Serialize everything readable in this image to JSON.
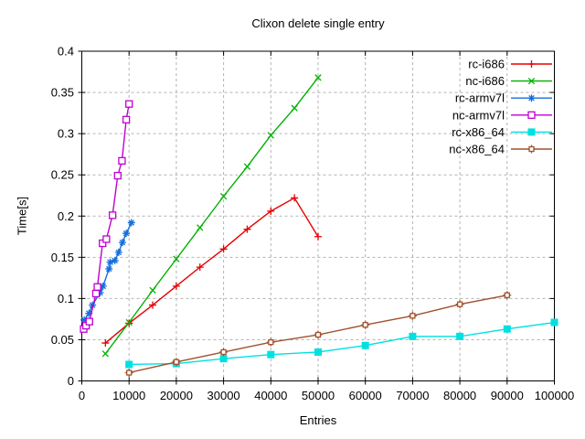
{
  "chart_data": {
    "type": "line",
    "title": "Clixon delete single entry",
    "xlabel": "Entries",
    "ylabel": "Time[s]",
    "xlim": [
      0,
      100000
    ],
    "ylim": [
      0,
      0.4
    ],
    "x_ticks": [
      0,
      10000,
      20000,
      30000,
      40000,
      50000,
      60000,
      70000,
      80000,
      90000,
      100000
    ],
    "y_ticks": [
      0,
      0.05,
      0.1,
      0.15,
      0.2,
      0.25,
      0.3,
      0.35,
      0.4
    ],
    "grid": true,
    "grid_color": "#b3b3b3",
    "legend_position": "top-right-inside",
    "series": [
      {
        "name": "rc-i686",
        "color": "#e60000",
        "marker": "plus",
        "x": [
          5000,
          10000,
          15000,
          20000,
          25000,
          30000,
          35000,
          40000,
          45000,
          50000
        ],
        "y": [
          0.046,
          0.07,
          0.092,
          0.115,
          0.138,
          0.16,
          0.184,
          0.206,
          0.222,
          0.175
        ]
      },
      {
        "name": "nc-i686",
        "color": "#00b000",
        "marker": "cross",
        "x": [
          5000,
          10000,
          15000,
          20000,
          25000,
          30000,
          35000,
          40000,
          45000,
          50000
        ],
        "y": [
          0.033,
          0.071,
          0.11,
          0.148,
          0.186,
          0.224,
          0.26,
          0.298,
          0.331,
          0.368
        ]
      },
      {
        "name": "rc-armv7l",
        "color": "#146edc",
        "marker": "asterisk",
        "x": [
          500,
          1500,
          2250,
          3850,
          4500,
          5750,
          6000,
          7000,
          7800,
          8600,
          9400,
          10500
        ],
        "y": [
          0.074,
          0.082,
          0.092,
          0.107,
          0.115,
          0.136,
          0.144,
          0.146,
          0.156,
          0.168,
          0.179,
          0.192
        ]
      },
      {
        "name": "nc-armv7l",
        "color": "#c000d0",
        "marker": "square-open",
        "x": [
          400,
          900,
          1600,
          3000,
          3300,
          4400,
          5200,
          6500,
          7600,
          8500,
          9400,
          10000
        ],
        "y": [
          0.063,
          0.067,
          0.072,
          0.106,
          0.114,
          0.167,
          0.172,
          0.201,
          0.249,
          0.267,
          0.317,
          0.336
        ]
      },
      {
        "name": "rc-x86_64",
        "color": "#00e0e0",
        "marker": "square-filled",
        "x": [
          10000,
          20000,
          30000,
          40000,
          50000,
          60000,
          70000,
          80000,
          90000,
          100000
        ],
        "y": [
          0.02,
          0.021,
          0.027,
          0.032,
          0.035,
          0.043,
          0.054,
          0.054,
          0.063,
          0.071
        ]
      },
      {
        "name": "nc-x86_64",
        "color": "#a0522d",
        "marker": "square-plus",
        "x": [
          10000,
          20000,
          30000,
          40000,
          50000,
          60000,
          70000,
          80000,
          90000
        ],
        "y": [
          0.01,
          0.023,
          0.035,
          0.047,
          0.056,
          0.068,
          0.079,
          0.093,
          0.104
        ]
      }
    ]
  }
}
